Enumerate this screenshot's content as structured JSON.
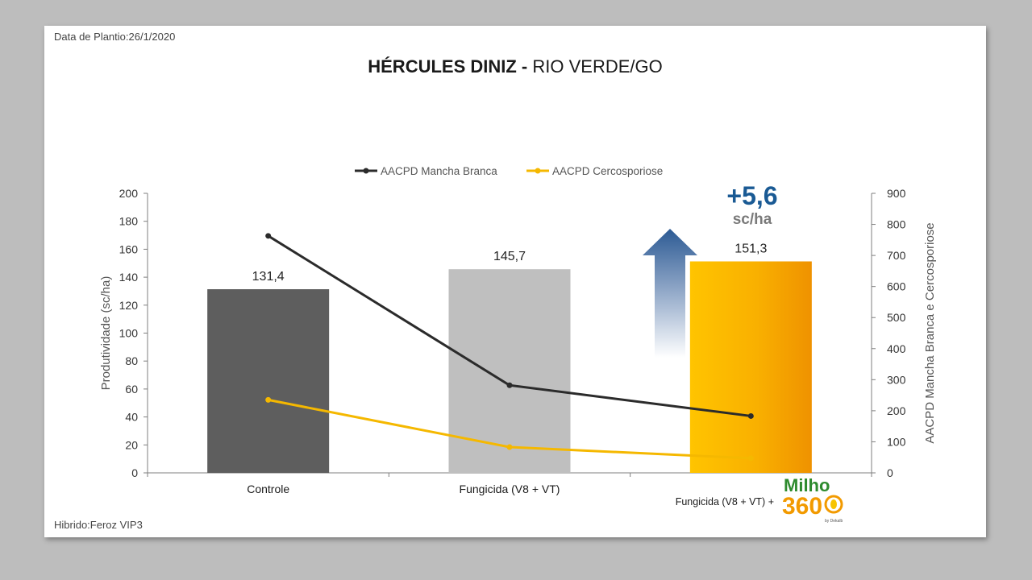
{
  "header": {
    "planting_date": "Data de Plantio:26/1/2020",
    "title_bold": "HÉRCULES DINIZ -",
    "title_normal": "RIO VERDE/GO",
    "hybrid": "Hibrido:Feroz VIP3"
  },
  "highlight": {
    "gain": "+5,6",
    "unit": "sc/ha",
    "gain_color": "#1a5a94"
  },
  "logo": {
    "prefix": "Fungicida (V8 + VT) +",
    "line1": "Milho",
    "line2": "360",
    "byline": "by Dekalb"
  },
  "chart_data": {
    "type": "bar",
    "categories": [
      "Controle",
      "Fungicida (V8 + VT)",
      "Fungicida (V8 + VT) + Milho 360"
    ],
    "category_labels": [
      "Controle",
      "Fungicida (V8 + VT)",
      ""
    ],
    "bars": {
      "values": [
        131.4,
        145.7,
        151.3
      ],
      "labels": [
        "131,4",
        "145,7",
        "151,3"
      ],
      "colors": [
        "#5e5e5e",
        "#bfbfbf",
        "#f7a800"
      ]
    },
    "ylabel": "Produtividade (sc/ha)",
    "ylim": [
      0,
      200
    ],
    "yticks": [
      0,
      20,
      40,
      60,
      80,
      100,
      120,
      140,
      160,
      180,
      200
    ],
    "y2label": "AACPD Mancha Branca e Cercosporiose",
    "y2lim": [
      0,
      900
    ],
    "y2ticks": [
      0,
      100,
      200,
      300,
      400,
      500,
      600,
      700,
      800,
      900
    ],
    "series": [
      {
        "name": "AACPD Mancha Branca",
        "axis": "right",
        "color": "#2b2b2b",
        "values": [
          763,
          282,
          183
        ]
      },
      {
        "name": "AACPD Cercosporiose",
        "axis": "right",
        "color": "#f5b800",
        "values": [
          235,
          83,
          47
        ]
      }
    ],
    "legend_position": "top-center",
    "grid": false
  }
}
